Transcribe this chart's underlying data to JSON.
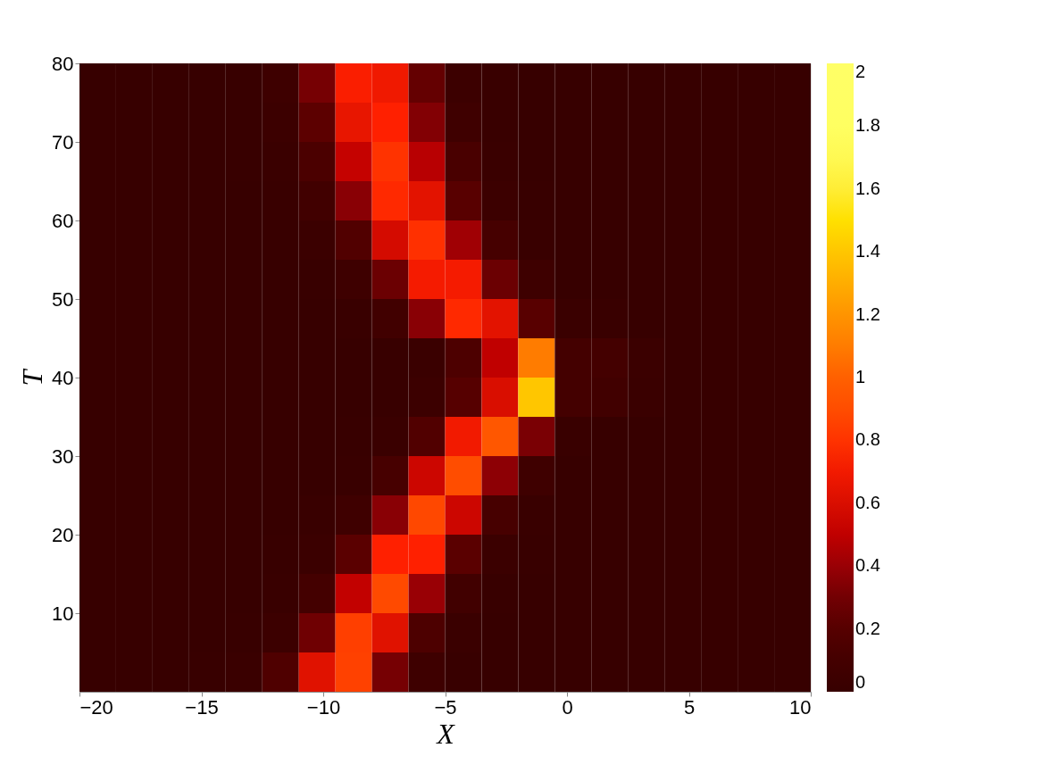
{
  "chart_data": {
    "type": "heatmap",
    "xlabel": "X",
    "ylabel": "T",
    "x": [
      -19.25,
      -17.75,
      -16.25,
      -14.75,
      -13.25,
      -11.75,
      -10.25,
      -8.75,
      -7.25,
      -5.75,
      -4.25,
      -2.75,
      -1.25,
      0.25,
      1.75,
      3.25,
      4.75,
      6.25,
      7.75,
      9.25
    ],
    "y": [
      2.5,
      7.5,
      12.5,
      17.5,
      22.5,
      27.5,
      32.5,
      37.5,
      42.5,
      47.5,
      52.5,
      57.5,
      62.5,
      67.5,
      72.5,
      77.5
    ],
    "cells": [
      [
        0,
        0,
        0,
        0.01,
        0.03,
        0.16,
        0.63,
        0.85,
        0.31,
        0.06,
        0.01,
        0,
        0,
        0,
        0,
        0,
        0,
        0,
        0,
        0
      ],
      [
        0,
        0,
        0,
        0,
        0.01,
        0.05,
        0.29,
        0.84,
        0.63,
        0.15,
        0.03,
        0,
        0,
        0,
        0,
        0,
        0,
        0,
        0,
        0
      ],
      [
        0,
        0,
        0,
        0,
        0,
        0.02,
        0.1,
        0.51,
        0.89,
        0.4,
        0.08,
        0.01,
        0,
        0,
        0,
        0,
        0,
        0,
        0,
        0
      ],
      [
        0,
        0,
        0,
        0,
        0,
        0.01,
        0.04,
        0.22,
        0.75,
        0.75,
        0.22,
        0.04,
        0.01,
        0,
        0,
        0,
        0,
        0,
        0,
        0
      ],
      [
        0,
        0,
        0,
        0,
        0,
        0,
        0.02,
        0.07,
        0.36,
        0.88,
        0.55,
        0.12,
        0.02,
        0,
        0,
        0,
        0,
        0,
        0,
        0
      ],
      [
        0,
        0,
        0,
        0,
        0,
        0,
        0,
        0.02,
        0.12,
        0.55,
        0.9,
        0.37,
        0.07,
        0,
        0,
        0,
        0,
        0,
        0,
        0
      ],
      [
        0,
        0,
        0,
        0,
        0,
        0,
        0,
        0.01,
        0.03,
        0.17,
        0.7,
        0.95,
        0.32,
        0.02,
        0,
        0,
        0,
        0,
        0,
        0
      ],
      [
        0,
        0,
        0,
        0,
        0,
        0,
        0,
        0,
        0.01,
        0.05,
        0.2,
        0.6,
        1.4,
        0.1,
        0.08,
        0.03,
        0,
        0,
        0,
        0
      ],
      [
        0,
        0,
        0,
        0,
        0,
        0,
        0,
        0,
        0.01,
        0.03,
        0.15,
        0.5,
        1.1,
        0.1,
        0.1,
        0.04,
        0,
        0,
        0,
        0
      ],
      [
        0,
        0,
        0,
        0,
        0,
        0,
        0,
        0.02,
        0.08,
        0.36,
        0.77,
        0.64,
        0.21,
        0.03,
        0.02,
        0,
        0,
        0,
        0,
        0
      ],
      [
        0,
        0,
        0,
        0,
        0,
        0,
        0.01,
        0.06,
        0.28,
        0.71,
        0.71,
        0.28,
        0.06,
        0,
        0,
        0,
        0,
        0,
        0,
        0
      ],
      [
        0,
        0,
        0,
        0,
        0,
        0.01,
        0.04,
        0.17,
        0.58,
        0.79,
        0.42,
        0.11,
        0.02,
        0,
        0,
        0,
        0,
        0,
        0,
        0
      ],
      [
        0,
        0,
        0,
        0,
        0,
        0.02,
        0.08,
        0.36,
        0.77,
        0.64,
        0.21,
        0.05,
        0.01,
        0,
        0,
        0,
        0,
        0,
        0,
        0
      ],
      [
        0,
        0,
        0,
        0,
        0.01,
        0.03,
        0.14,
        0.52,
        0.8,
        0.48,
        0.13,
        0.03,
        0,
        0,
        0,
        0,
        0,
        0,
        0,
        0
      ],
      [
        0,
        0,
        0,
        0,
        0.01,
        0.05,
        0.23,
        0.66,
        0.75,
        0.34,
        0.07,
        0.02,
        0,
        0,
        0,
        0,
        0,
        0,
        0,
        0
      ],
      [
        0,
        0,
        0,
        0,
        0.01,
        0.06,
        0.31,
        0.73,
        0.69,
        0.26,
        0.05,
        0.02,
        0,
        0,
        0,
        0,
        0,
        0,
        0,
        0
      ]
    ],
    "xlim": [
      -20,
      10
    ],
    "xticks": [
      -20,
      -15,
      -10,
      -5,
      0,
      5,
      10
    ],
    "ylim": [
      0,
      80
    ],
    "yticks": [
      10,
      20,
      30,
      40,
      50,
      60,
      70,
      80
    ],
    "clim": [
      0,
      2
    ],
    "cticks": [
      0,
      0.2,
      0.4,
      0.6,
      0.8,
      1,
      1.2,
      1.4,
      1.6,
      1.8,
      2
    ]
  }
}
